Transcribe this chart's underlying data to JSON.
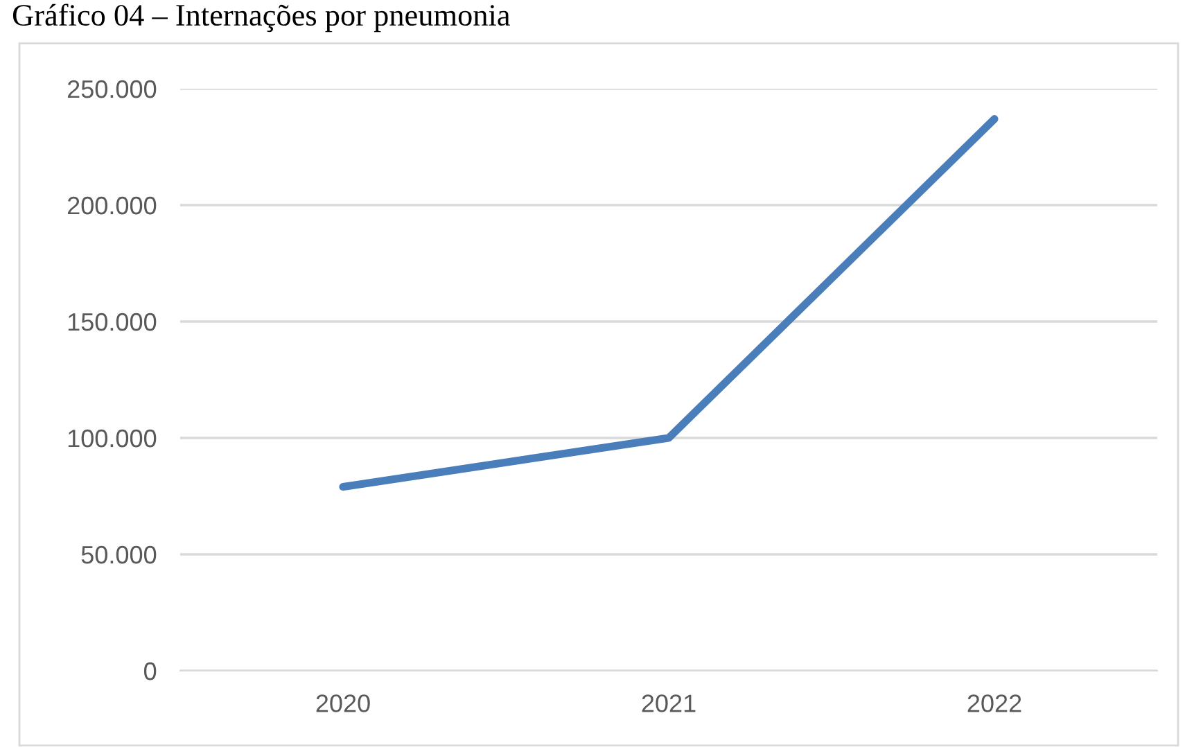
{
  "chart_data": {
    "type": "line",
    "title": "Gráfico 04 – Internações por pneumonia",
    "categories": [
      "2020",
      "2021",
      "2022"
    ],
    "series": [
      {
        "color": "#4a7ebb",
        "values": [
          79000,
          100000,
          237000
        ]
      }
    ],
    "ylim": [
      0,
      250000
    ],
    "yticks": [
      {
        "value": 0,
        "label": "0"
      },
      {
        "value": 50000,
        "label": "50.000"
      },
      {
        "value": 100000,
        "label": "100.000"
      },
      {
        "value": 150000,
        "label": "150.000"
      },
      {
        "value": 200000,
        "label": "200.000"
      },
      {
        "value": 250000,
        "label": "250.000"
      }
    ],
    "grid": "y",
    "marker": "none",
    "line_style": "solid"
  }
}
